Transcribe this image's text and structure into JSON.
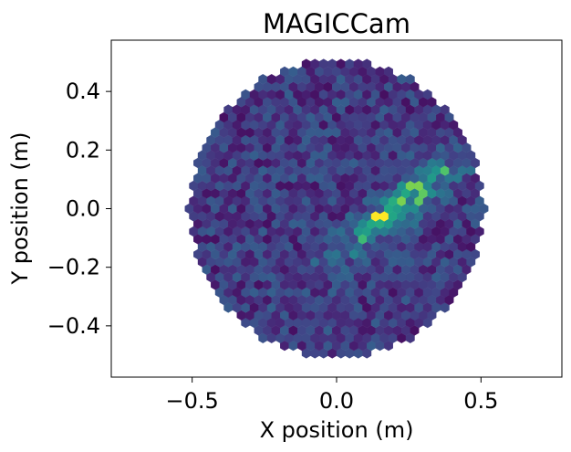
{
  "chart_data": {
    "type": "heatmap",
    "title": "MAGICCam",
    "xlabel": "X position (m)",
    "ylabel": "Y position (m)",
    "xlim": [
      -0.78,
      0.78
    ],
    "ylim": [
      -0.575,
      0.575
    ],
    "x_ticks": [
      {
        "value": -0.5,
        "label": "−0.5"
      },
      {
        "value": 0.0,
        "label": "0.0"
      },
      {
        "value": 0.5,
        "label": "0.5"
      }
    ],
    "y_ticks": [
      {
        "value": -0.4,
        "label": "−0.4"
      },
      {
        "value": -0.2,
        "label": "−0.2"
      },
      {
        "value": 0.0,
        "label": "0.0"
      },
      {
        "value": 0.2,
        "label": "0.2"
      },
      {
        "value": 0.4,
        "label": "0.4"
      }
    ],
    "camera": {
      "shape": "hexagonal-pixel-camera",
      "radius_m": 0.51,
      "pixel_pitch_m": 0.03
    },
    "image_feature": {
      "shape": "ellipse",
      "center": [
        0.22,
        0.01
      ],
      "semi_major_m": 0.2,
      "semi_minor_m": 0.045,
      "angle_deg": 38,
      "peak": 1.0
    },
    "hotspots": [
      {
        "x": 0.15,
        "y": -0.02,
        "value": 1.0
      },
      {
        "x": 0.27,
        "y": 0.08,
        "value": 0.8
      },
      {
        "x": 0.23,
        "y": 0.02,
        "value": 0.8
      },
      {
        "x": 0.29,
        "y": 0.04,
        "value": 0.75
      },
      {
        "x": 0.37,
        "y": 0.13,
        "value": 0.72
      },
      {
        "x": 0.09,
        "y": -0.11,
        "value": 0.68
      },
      {
        "x": 0.13,
        "y": -0.05,
        "value": 0.6
      }
    ],
    "colormap": "viridis",
    "grid": false,
    "legend": false
  }
}
